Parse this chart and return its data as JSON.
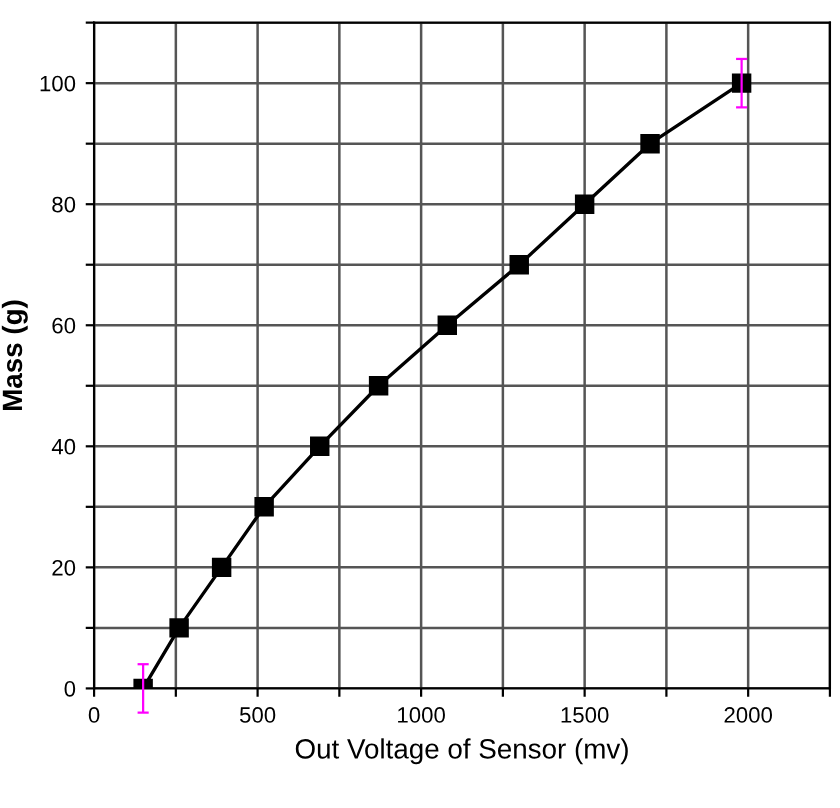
{
  "chart_data": {
    "type": "line",
    "xlabel": "Out Voltage of Sensor (mv)",
    "ylabel": "Mass (g)",
    "x": [
      150,
      260,
      390,
      520,
      690,
      870,
      1080,
      1300,
      1500,
      1700,
      1980
    ],
    "series": [
      {
        "color": "#000000",
        "values": [
          0,
          10,
          20,
          30,
          40,
          50,
          60,
          70,
          80,
          90,
          100
        ],
        "errors": [
          4,
          null,
          null,
          null,
          null,
          null,
          null,
          null,
          null,
          null,
          4
        ]
      }
    ],
    "xlim": [
      0,
      2250
    ],
    "xticks": [
      0,
      {
        "value": 250,
        "label": null
      },
      500,
      {
        "value": 750,
        "label": null
      },
      1000,
      {
        "value": 1250,
        "label": null
      },
      1500,
      {
        "value": 1750,
        "label": null
      },
      2000,
      {
        "value": 2250,
        "label": null
      }
    ],
    "ylim": [
      0,
      110
    ],
    "yticks": [
      0,
      {
        "value": 10,
        "label": null
      },
      20,
      {
        "value": 30,
        "label": null
      },
      40,
      {
        "value": 50,
        "label": null
      },
      60,
      {
        "value": 70,
        "label": null
      },
      80,
      {
        "value": 90,
        "label": null
      },
      100,
      {
        "value": 110,
        "label": null
      }
    ],
    "grid": true,
    "marker": "square",
    "line_style": "solid"
  }
}
